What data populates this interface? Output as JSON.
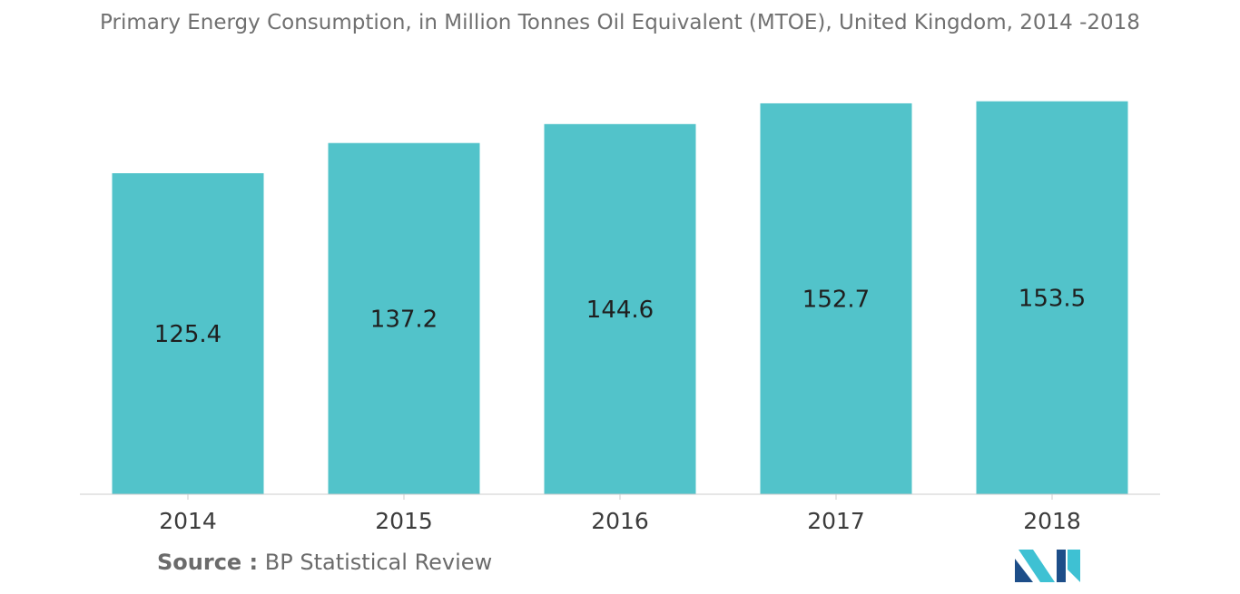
{
  "chart_data": {
    "type": "bar",
    "title": "Primary Energy Consumption, in Million Tonnes Oil Equivalent (MTOE), United Kingdom, 2014 -2018",
    "categories": [
      "2014",
      "2015",
      "2016",
      "2017",
      "2018"
    ],
    "values": [
      125.4,
      137.2,
      144.6,
      152.7,
      153.5
    ],
    "value_labels": [
      "125.4",
      "137.2",
      "144.6",
      "152.7",
      "153.5"
    ],
    "xlabel": "",
    "ylabel": "",
    "ylim": [
      0,
      154.1
    ],
    "grid": false,
    "legend": "none",
    "bar_color": "#52c3ca"
  },
  "footer": {
    "source_label": "Source :",
    "source_text": " BP Statistical Review"
  },
  "colors": {
    "title": "#707070",
    "axis": "#cccccc",
    "tick_text": "#3c3c3c",
    "value_text": "#1f1f1f",
    "logo_dark": "#1d4e89",
    "logo_light": "#3ec1d3"
  }
}
